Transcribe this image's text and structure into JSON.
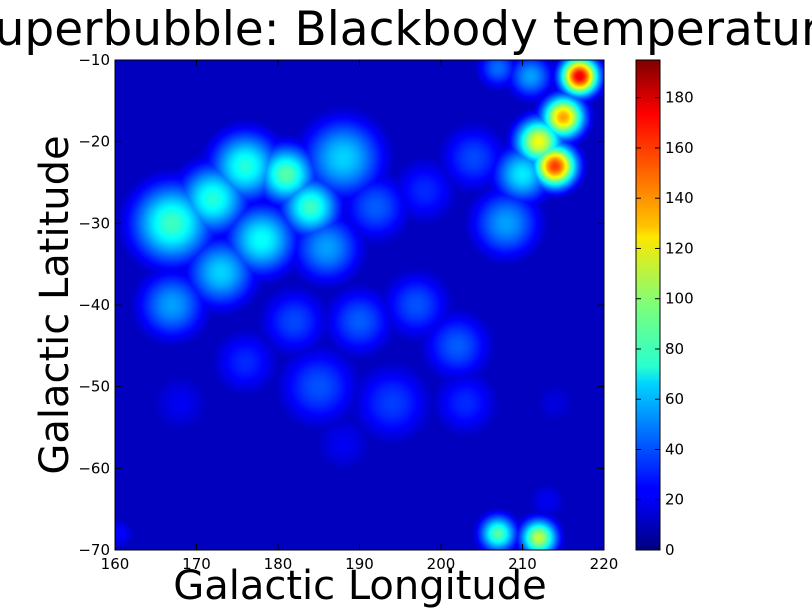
{
  "chart_data": {
    "type": "heatmap",
    "title": "Superbubble: Blackbody temperature",
    "xlabel": "Galactic Longitude",
    "ylabel": "Galactic Latitude",
    "xlim": [
      160,
      220
    ],
    "ylim": [
      -70,
      -10
    ],
    "x_ticks": [
      "160",
      "170",
      "180",
      "190",
      "200",
      "210",
      "220"
    ],
    "y_ticks": [
      "−10",
      "−20",
      "−30",
      "−40",
      "−50",
      "−60",
      "−70"
    ],
    "colorbar": {
      "range": [
        0,
        195
      ],
      "colormap": "jet",
      "ticks": [
        "0",
        "20",
        "40",
        "60",
        "80",
        "100",
        "120",
        "140",
        "160",
        "180"
      ]
    },
    "background_level": 12,
    "blobs": [
      {
        "l": 167,
        "b": -30,
        "sigma": 3.5,
        "value": 85
      },
      {
        "l": 172,
        "b": -27,
        "sigma": 3.0,
        "value": 80
      },
      {
        "l": 176,
        "b": -23,
        "sigma": 3.0,
        "value": 80
      },
      {
        "l": 181,
        "b": -24,
        "sigma": 2.5,
        "value": 90
      },
      {
        "l": 184,
        "b": -28,
        "sigma": 2.5,
        "value": 85
      },
      {
        "l": 178,
        "b": -32,
        "sigma": 3.0,
        "value": 75
      },
      {
        "l": 173,
        "b": -36,
        "sigma": 3.0,
        "value": 65
      },
      {
        "l": 167,
        "b": -40,
        "sigma": 3.0,
        "value": 55
      },
      {
        "l": 188,
        "b": -22,
        "sigma": 3.5,
        "value": 65
      },
      {
        "l": 186,
        "b": -33,
        "sigma": 3.0,
        "value": 55
      },
      {
        "l": 192,
        "b": -28,
        "sigma": 3.0,
        "value": 42
      },
      {
        "l": 198,
        "b": -26,
        "sigma": 3.0,
        "value": 32
      },
      {
        "l": 204,
        "b": -22,
        "sigma": 3.0,
        "value": 38
      },
      {
        "l": 182,
        "b": -42,
        "sigma": 3.0,
        "value": 38
      },
      {
        "l": 190,
        "b": -42,
        "sigma": 3.0,
        "value": 42
      },
      {
        "l": 197,
        "b": -40,
        "sigma": 3.0,
        "value": 40
      },
      {
        "l": 202,
        "b": -45,
        "sigma": 3.0,
        "value": 42
      },
      {
        "l": 176,
        "b": -47,
        "sigma": 3.0,
        "value": 32
      },
      {
        "l": 185,
        "b": -50,
        "sigma": 3.5,
        "value": 40
      },
      {
        "l": 194,
        "b": -52,
        "sigma": 3.5,
        "value": 36
      },
      {
        "l": 203,
        "b": -52,
        "sigma": 3.0,
        "value": 32
      },
      {
        "l": 168,
        "b": -52,
        "sigma": 3.0,
        "value": 22
      },
      {
        "l": 188,
        "b": -57,
        "sigma": 3.0,
        "value": 22
      },
      {
        "l": 208,
        "b": -30,
        "sigma": 3.0,
        "value": 55
      },
      {
        "l": 210,
        "b": -24,
        "sigma": 2.5,
        "value": 70
      },
      {
        "l": 212,
        "b": -20,
        "sigma": 2.0,
        "value": 120
      },
      {
        "l": 214,
        "b": -23,
        "sigma": 1.8,
        "value": 160
      },
      {
        "l": 215,
        "b": -17,
        "sigma": 1.8,
        "value": 140
      },
      {
        "l": 217,
        "b": -12,
        "sigma": 1.6,
        "value": 175
      },
      {
        "l": 211,
        "b": -12,
        "sigma": 2.0,
        "value": 55
      },
      {
        "l": 207,
        "b": -11,
        "sigma": 1.8,
        "value": 45
      },
      {
        "l": 207,
        "b": -68,
        "sigma": 1.6,
        "value": 90
      },
      {
        "l": 212,
        "b": -68.5,
        "sigma": 1.6,
        "value": 110
      },
      {
        "l": 213,
        "b": -64,
        "sigma": 2.0,
        "value": 22
      },
      {
        "l": 160.5,
        "b": -68,
        "sigma": 1.5,
        "value": 25
      },
      {
        "l": 214,
        "b": -52,
        "sigma": 2.5,
        "value": 18
      }
    ]
  }
}
